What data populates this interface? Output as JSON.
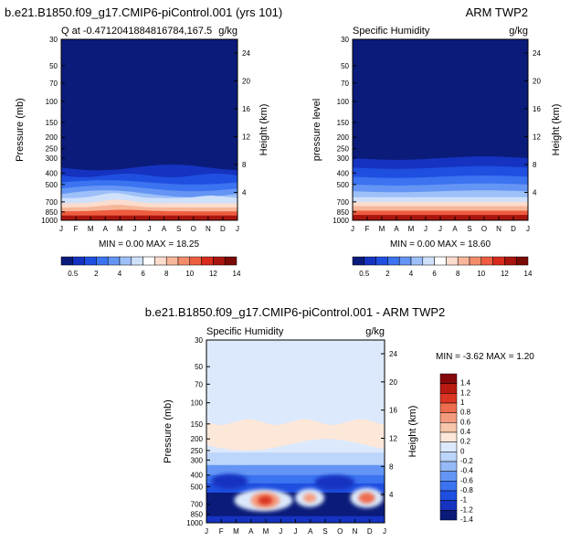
{
  "colors": {
    "abs_levels": [
      "#0a1b7a",
      "#1533c0",
      "#1f4fe0",
      "#3b73f0",
      "#6495f5",
      "#9ec0f8",
      "#cfe0fb",
      "#ffffff",
      "#fbdccd",
      "#f7b699",
      "#f38c6a",
      "#ee5d3f",
      "#d82a1c",
      "#a9140e",
      "#7a0a06"
    ],
    "diff_levels": [
      "#0a1b7a",
      "#1533c0",
      "#1f4fe0",
      "#3b73f0",
      "#6495f5",
      "#94b9f6",
      "#bcd5fb",
      "#dce9fc",
      "#fde7d8",
      "#f8c6ab",
      "#f59b7d",
      "#ee6c4e",
      "#db3523",
      "#b81910",
      "#85090a"
    ]
  },
  "chart_data": [
    {
      "type": "heatmap",
      "title_left": "b.e21.B1850.f09_g17.CMIP6-piControl.001 (yrs 101)",
      "subtitle_left": "Q at -0.471204188481678​4,167.5",
      "units": "g/kg",
      "ylabel": "Pressure (mb)",
      "ylabel_right": "Height (km)",
      "x_ticks": [
        "J",
        "F",
        "M",
        "A",
        "M",
        "J",
        "J",
        "A",
        "S",
        "O",
        "N",
        "D",
        "J"
      ],
      "y_ticks": [
        "30",
        "50",
        "70",
        "100",
        "150",
        "200",
        "250",
        "300",
        "400",
        "500",
        "700",
        "850",
        "1000"
      ],
      "y_ticks_right": [
        "24",
        "20",
        "16",
        "12",
        "8",
        "4"
      ],
      "min_max": "MIN =   0.00 MAX =  18.25"
    },
    {
      "type": "heatmap",
      "title_right": "ARM TWP2",
      "subtitle_left": "Specific Humidity",
      "units": "g/kg",
      "ylabel": "pressure level",
      "ylabel_right": "Height (km)",
      "x_ticks": [
        "J",
        "F",
        "M",
        "A",
        "M",
        "J",
        "J",
        "A",
        "S",
        "O",
        "N",
        "D",
        "J"
      ],
      "y_ticks": [
        "30",
        "50",
        "70",
        "100",
        "150",
        "200",
        "250",
        "300",
        "400",
        "500",
        "700",
        "850",
        "1000"
      ],
      "y_ticks_right": [
        "24",
        "20",
        "16",
        "12",
        "8",
        "4"
      ],
      "min_max": "MIN =   0.00 MAX =  18.60"
    },
    {
      "type": "heatmap",
      "title": "b.e21.B1850.f09_g17.CMIP6-piControl.001 - ARM TWP2",
      "subtitle_left": "Specific Humidity",
      "units": "g/kg",
      "ylabel": "Pressure (mb)",
      "ylabel_right": "Height (km)",
      "x_ticks": [
        "J",
        "F",
        "M",
        "A",
        "M",
        "J",
        "J",
        "A",
        "S",
        "O",
        "N",
        "D",
        "J"
      ],
      "y_ticks": [
        "30",
        "50",
        "70",
        "100",
        "150",
        "200",
        "250",
        "300",
        "400",
        "500",
        "700",
        "850",
        "1000"
      ],
      "y_ticks_right": [
        "24",
        "20",
        "16",
        "12",
        "8",
        "4"
      ],
      "min_max": "MIN =  -3.62 MAX =   1.20",
      "colorbar_labels": [
        "1.4",
        "1.2",
        "1",
        "0.8",
        "0.6",
        "0.4",
        "0.2",
        "0",
        "-0.2",
        "-0.4",
        "-0.6",
        "-0.8",
        "-1",
        "-1.2",
        "-1.4"
      ]
    }
  ],
  "abs_colorbar_labels": [
    "0.5",
    "2",
    "4",
    "6",
    "8",
    "10",
    "12",
    "14"
  ]
}
